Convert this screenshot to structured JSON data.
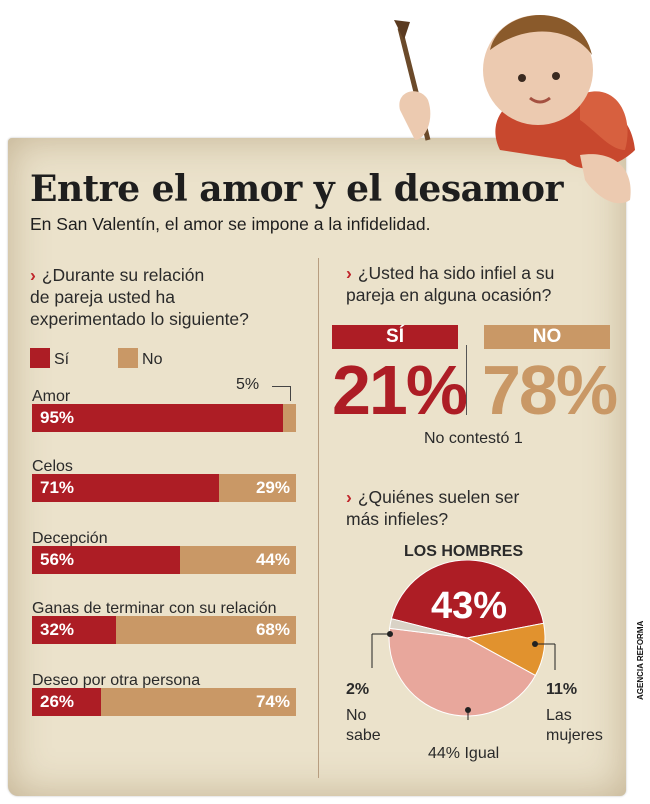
{
  "title": "Entre el amor y el desamor",
  "subtitle": "En San Valentín, el amor se impone a la infidelidad.",
  "left": {
    "question": "¿Durante su relación de pareja usted ha experimentado lo siguiente?",
    "question_lines": [
      "¿Durante su relación",
      "de pareja usted ha",
      "experimentado lo siguiente?"
    ],
    "legend_si": "Sí",
    "legend_no": "No",
    "annotation": "5%"
  },
  "right": {
    "question_lines": [
      "¿Usted ha sido infiel a su",
      "pareja en alguna ocasión?"
    ],
    "si_label": "SÍ",
    "no_label": "NO",
    "si_value": "21%",
    "no_value": "78%",
    "no_contesto": "No contestó 1",
    "q2_lines": [
      "¿Quiénes suelen ser",
      "más infieles?"
    ],
    "hombres_label": "LOS HOMBRES",
    "hombres_value": "43%",
    "nosabe_value": "2%",
    "nosabe_lines": [
      "No",
      "sabe"
    ],
    "mujeres_value": "11%",
    "mujeres_lines": [
      "Las",
      "mujeres"
    ],
    "igual_label": "44% Igual"
  },
  "source": "AGENCIA REFORMA",
  "colors": {
    "si": "#ad1d25",
    "no": "#c99866",
    "hombres": "#ad1d25",
    "mujeres": "#e1922e",
    "igual": "#e8a79c",
    "nosabe": "#d9d2c6"
  },
  "chart_data": [
    {
      "type": "bar",
      "title": "¿Durante su relación de pareja usted ha experimentado lo siguiente?",
      "categories": [
        "Amor",
        "Celos",
        "Decepción",
        "Ganas de terminar con su relación",
        "Deseo por otra persona"
      ],
      "series": [
        {
          "name": "Sí",
          "values": [
            95,
            71,
            56,
            32,
            26
          ]
        },
        {
          "name": "No",
          "values": [
            5,
            29,
            44,
            68,
            74
          ]
        }
      ],
      "value_labels_si": [
        "95%",
        "71%",
        "56%",
        "32%",
        "26%"
      ],
      "value_labels_no": [
        "",
        "29%",
        "44%",
        "68%",
        "74%"
      ],
      "stacked": true
    },
    {
      "type": "bar",
      "title": "¿Usted ha sido infiel a su pareja en alguna ocasión?",
      "categories": [
        "SÍ",
        "NO"
      ],
      "values": [
        21,
        78
      ]
    },
    {
      "type": "pie",
      "title": "¿Quiénes suelen ser más infieles?",
      "categories": [
        "LOS HOMBRES",
        "Las mujeres",
        "Igual",
        "No sabe"
      ],
      "values": [
        43,
        11,
        44,
        2
      ]
    }
  ]
}
